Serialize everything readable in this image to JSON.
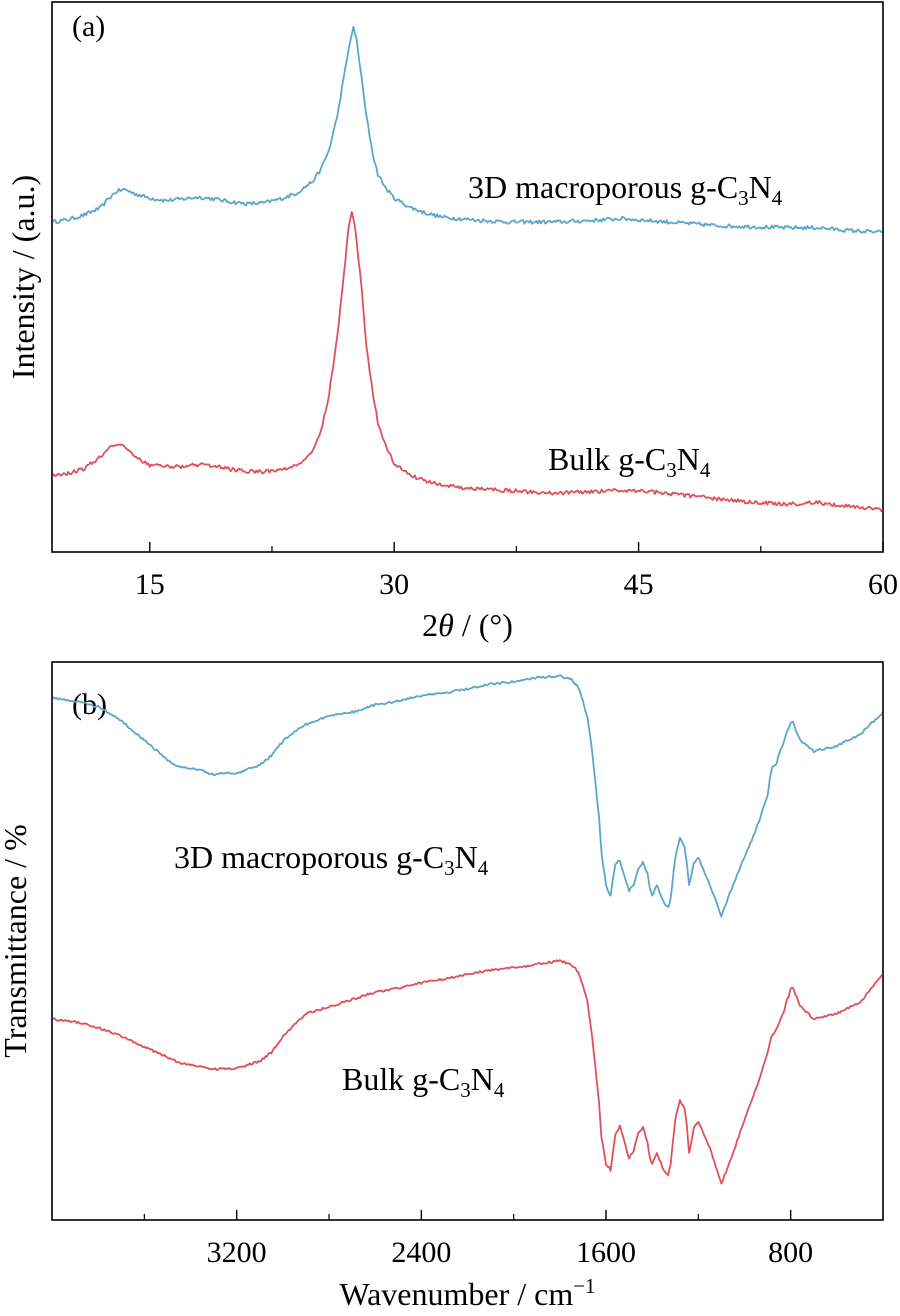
{
  "colors": {
    "blue": "#5aa7cc",
    "red": "#e0505a",
    "axis": "#000000"
  },
  "chart_data": [
    {
      "panel_label": "(a)",
      "type": "line",
      "xlabel": {
        "pre": "2",
        "var": "θ",
        "post": " / (°)"
      },
      "ylabel": "Intensity / (a.u.)",
      "xlim": [
        9,
        60
      ],
      "ylim": [
        -0.05,
        1.1
      ],
      "xticks": [
        15,
        30,
        45,
        60
      ],
      "xtick_labels": [
        "15",
        "30",
        "45",
        "60"
      ],
      "minor_xticks": [
        22.5,
        37.5,
        52.5
      ],
      "series": [
        {
          "name_parts": [
            "3D macroporous g-C",
            "3",
            "N",
            "4"
          ],
          "color": "blue",
          "x": [
            9,
            10,
            11,
            12,
            12.5,
            13,
            13.5,
            14,
            15,
            16,
            17,
            18,
            19,
            20,
            21,
            22,
            23,
            24,
            25,
            25.5,
            26,
            26.5,
            27,
            27.3,
            27.5,
            27.7,
            28,
            28.3,
            28.7,
            29,
            29.5,
            30,
            31,
            32,
            33,
            34,
            35,
            37,
            40,
            42,
            44,
            46,
            48,
            50,
            52,
            54,
            56,
            58,
            60
          ],
          "y": [
            0.64,
            0.645,
            0.655,
            0.67,
            0.69,
            0.705,
            0.708,
            0.7,
            0.69,
            0.685,
            0.688,
            0.692,
            0.688,
            0.682,
            0.678,
            0.68,
            0.688,
            0.7,
            0.725,
            0.75,
            0.79,
            0.86,
            0.96,
            1.02,
            1.045,
            1.02,
            0.94,
            0.86,
            0.78,
            0.74,
            0.71,
            0.69,
            0.67,
            0.658,
            0.65,
            0.647,
            0.644,
            0.64,
            0.64,
            0.643,
            0.647,
            0.642,
            0.637,
            0.632,
            0.63,
            0.628,
            0.628,
            0.622,
            0.618
          ]
        },
        {
          "name_parts": [
            "Bulk g-C",
            "3",
            "N",
            "4"
          ],
          "color": "red",
          "x": [
            9,
            10,
            11,
            12,
            12.5,
            13,
            13.5,
            14,
            15,
            16,
            17,
            18,
            19,
            20,
            21,
            22,
            23,
            24,
            25,
            25.5,
            26,
            26.5,
            27,
            27.2,
            27.4,
            27.6,
            28,
            28.3,
            28.7,
            29,
            29.5,
            30,
            31,
            32,
            33,
            34,
            35,
            37,
            40,
            42,
            44,
            46,
            48,
            50,
            52,
            54,
            56,
            58,
            60
          ],
          "y": [
            0.11,
            0.115,
            0.125,
            0.15,
            0.17,
            0.175,
            0.168,
            0.15,
            0.132,
            0.128,
            0.128,
            0.133,
            0.13,
            0.123,
            0.118,
            0.118,
            0.122,
            0.13,
            0.16,
            0.2,
            0.28,
            0.4,
            0.56,
            0.63,
            0.66,
            0.63,
            0.5,
            0.38,
            0.28,
            0.22,
            0.17,
            0.135,
            0.11,
            0.098,
            0.09,
            0.085,
            0.082,
            0.078,
            0.073,
            0.076,
            0.08,
            0.075,
            0.068,
            0.06,
            0.054,
            0.05,
            0.053,
            0.045,
            0.038
          ]
        }
      ]
    },
    {
      "panel_label": "(b)",
      "type": "line",
      "xlabel": {
        "pre": "Wavenumber / cm",
        "sup": "−1",
        "post": ""
      },
      "ylabel": "Transmittance / %",
      "xlim": [
        4000,
        400
      ],
      "ylim": [
        0,
        1
      ],
      "xticks": [
        3200,
        2400,
        1600,
        800
      ],
      "xtick_labels": [
        "3200",
        "2400",
        "1600",
        "800"
      ],
      "minor_xticks": [
        3600,
        2800,
        2000,
        1200
      ],
      "series": [
        {
          "name_parts": [
            "3D macroporous g-C",
            "3",
            "N",
            "4"
          ],
          "color": "blue",
          "x": [
            4000,
            3900,
            3800,
            3700,
            3600,
            3500,
            3450,
            3400,
            3350,
            3300,
            3250,
            3200,
            3150,
            3100,
            3050,
            3000,
            2950,
            2900,
            2800,
            2700,
            2600,
            2500,
            2400,
            2300,
            2200,
            2100,
            2000,
            1900,
            1800,
            1750,
            1720,
            1700,
            1680,
            1660,
            1640,
            1630,
            1620,
            1600,
            1580,
            1570,
            1560,
            1540,
            1520,
            1500,
            1480,
            1460,
            1440,
            1420,
            1410,
            1400,
            1380,
            1350,
            1330,
            1320,
            1300,
            1280,
            1260,
            1250,
            1240,
            1220,
            1200,
            1150,
            1100,
            1050,
            1000,
            950,
            900,
            890,
            880,
            860,
            850,
            830,
            820,
            810,
            800,
            790,
            780,
            760,
            700,
            600,
            500,
            400
          ],
          "y": [
            0.935,
            0.93,
            0.92,
            0.895,
            0.86,
            0.825,
            0.812,
            0.81,
            0.806,
            0.798,
            0.802,
            0.8,
            0.808,
            0.816,
            0.832,
            0.858,
            0.876,
            0.888,
            0.903,
            0.91,
            0.923,
            0.93,
            0.94,
            0.945,
            0.952,
            0.96,
            0.965,
            0.972,
            0.975,
            0.968,
            0.955,
            0.93,
            0.9,
            0.84,
            0.76,
            0.72,
            0.66,
            0.6,
            0.58,
            0.61,
            0.635,
            0.645,
            0.615,
            0.59,
            0.6,
            0.63,
            0.64,
            0.62,
            0.595,
            0.58,
            0.6,
            0.57,
            0.56,
            0.575,
            0.65,
            0.685,
            0.67,
            0.64,
            0.6,
            0.64,
            0.65,
            0.6,
            0.545,
            0.6,
            0.65,
            0.7,
            0.76,
            0.79,
            0.81,
            0.82,
            0.835,
            0.855,
            0.872,
            0.88,
            0.89,
            0.892,
            0.88,
            0.86,
            0.84,
            0.85,
            0.87,
            0.91
          ]
        },
        {
          "name_parts": [
            "Bulk g-C",
            "3",
            "N",
            "4"
          ],
          "color": "red",
          "x": [
            4000,
            3900,
            3800,
            3700,
            3600,
            3500,
            3450,
            3400,
            3350,
            3300,
            3250,
            3200,
            3150,
            3100,
            3050,
            3000,
            2950,
            2900,
            2800,
            2700,
            2600,
            2500,
            2400,
            2300,
            2200,
            2100,
            2000,
            1900,
            1800,
            1750,
            1720,
            1700,
            1680,
            1660,
            1640,
            1630,
            1620,
            1600,
            1580,
            1570,
            1560,
            1540,
            1520,
            1500,
            1480,
            1460,
            1440,
            1420,
            1410,
            1400,
            1380,
            1350,
            1330,
            1320,
            1300,
            1280,
            1260,
            1250,
            1240,
            1220,
            1200,
            1150,
            1100,
            1050,
            1000,
            950,
            900,
            890,
            880,
            860,
            850,
            830,
            820,
            810,
            800,
            790,
            780,
            760,
            700,
            600,
            500,
            400
          ],
          "y": [
            0.36,
            0.355,
            0.345,
            0.33,
            0.31,
            0.292,
            0.282,
            0.278,
            0.275,
            0.27,
            0.272,
            0.272,
            0.278,
            0.285,
            0.3,
            0.328,
            0.35,
            0.37,
            0.382,
            0.395,
            0.408,
            0.415,
            0.425,
            0.432,
            0.44,
            0.448,
            0.452,
            0.458,
            0.465,
            0.458,
            0.445,
            0.42,
            0.39,
            0.33,
            0.25,
            0.21,
            0.15,
            0.1,
            0.09,
            0.12,
            0.15,
            0.17,
            0.14,
            0.11,
            0.125,
            0.155,
            0.165,
            0.14,
            0.11,
            0.1,
            0.12,
            0.09,
            0.08,
            0.1,
            0.18,
            0.215,
            0.2,
            0.17,
            0.12,
            0.165,
            0.175,
            0.13,
            0.065,
            0.12,
            0.18,
            0.235,
            0.3,
            0.32,
            0.332,
            0.342,
            0.355,
            0.372,
            0.39,
            0.4,
            0.415,
            0.418,
            0.405,
            0.385,
            0.36,
            0.37,
            0.39,
            0.44
          ]
        }
      ]
    }
  ]
}
